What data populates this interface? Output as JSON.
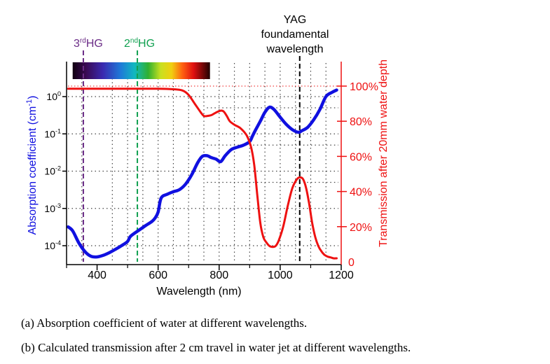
{
  "chart_data": {
    "type": "line",
    "xlabel": "Wavelength (nm)",
    "ylabel_left": "Absorption coefficient (cm",
    "ylabel_left_sup": "-1",
    "ylabel_left_end": ")",
    "ylabel_right": "Transmission after 20mm water depth",
    "xlim": [
      300,
      1200
    ],
    "x_ticks": [
      400,
      600,
      800,
      1000,
      1200
    ],
    "y_left_log_range": [
      0.0001,
      1
    ],
    "y_left_ticks": [
      {
        "base": "10",
        "exp": "0",
        "value": 1
      },
      {
        "base": "10",
        "exp": "-1",
        "value": 0.1
      },
      {
        "base": "10",
        "exp": "-2",
        "value": 0.01
      },
      {
        "base": "10",
        "exp": "-3",
        "value": 0.001
      },
      {
        "base": "10",
        "exp": "-4",
        "value": 0.0001
      }
    ],
    "y_right_ticks": [
      {
        "label": "0",
        "value": 0
      },
      {
        "label": "20%",
        "value": 20
      },
      {
        "label": "40%",
        "value": 40
      },
      {
        "label": "60%",
        "value": 60
      },
      {
        "label": "80%",
        "value": 80
      },
      {
        "label": "100%",
        "value": 100
      }
    ],
    "grid": true,
    "series": [
      {
        "role": "absorption",
        "color": "#1010e0",
        "axis": "left",
        "x": [
          305,
          320,
          340,
          360,
          380,
          400,
          420,
          440,
          460,
          480,
          500,
          510,
          540,
          560,
          580,
          590,
          600,
          610,
          630,
          650,
          670,
          690,
          710,
          730,
          745,
          760,
          775,
          790,
          805,
          820,
          840,
          860,
          880,
          900,
          910,
          920,
          935,
          950,
          965,
          980,
          1000,
          1020,
          1040,
          1060,
          1070,
          1090,
          1110,
          1130,
          1150,
          1170,
          1185
        ],
        "y": [
          0.00032,
          0.00025,
          0.00012,
          7e-05,
          5.2e-05,
          5e-05,
          5.5e-05,
          6.5e-05,
          8e-05,
          0.0001,
          0.00013,
          0.00018,
          0.00027,
          0.00035,
          0.00045,
          0.00055,
          0.0008,
          0.0019,
          0.0024,
          0.0028,
          0.0032,
          0.0045,
          0.008,
          0.017,
          0.025,
          0.026,
          0.023,
          0.021,
          0.018,
          0.026,
          0.038,
          0.044,
          0.05,
          0.062,
          0.09,
          0.13,
          0.22,
          0.38,
          0.52,
          0.45,
          0.28,
          0.18,
          0.13,
          0.11,
          0.12,
          0.15,
          0.24,
          0.45,
          1.0,
          1.3,
          1.5
        ]
      },
      {
        "role": "transmission",
        "color": "#ee1111",
        "axis": "right",
        "x": [
          305,
          400,
          500,
          600,
          650,
          680,
          700,
          720,
          740,
          750,
          760,
          775,
          790,
          805,
          815,
          825,
          835,
          850,
          870,
          890,
          905,
          915,
          925,
          935,
          945,
          955,
          965,
          975,
          985,
          995,
          1010,
          1025,
          1040,
          1055,
          1065,
          1075,
          1085,
          1095,
          1105,
          1115,
          1125,
          1135,
          1145,
          1155,
          1165,
          1175,
          1185
        ],
        "y": [
          98.5,
          98.5,
          98.5,
          98.5,
          98.2,
          97.5,
          95,
          90,
          85,
          83,
          83,
          83.5,
          85,
          86,
          85.5,
          83,
          80,
          78,
          76,
          72,
          65,
          55,
          38,
          22,
          14,
          11,
          9,
          8.5,
          9,
          12,
          20,
          32,
          42,
          47,
          48,
          47,
          42,
          33,
          22,
          14,
          9,
          6,
          4,
          3,
          2.5,
          2,
          2
        ]
      }
    ],
    "annotations": {
      "hg3": {
        "x": 355,
        "label": "3",
        "sup": "rd",
        "suffix": "HG",
        "color": "#6a2b86"
      },
      "hg2": {
        "x": 532,
        "label": "2",
        "sup": "nd",
        "suffix": "HG",
        "color": "#10a050"
      },
      "yag": {
        "x": 1064,
        "lines": [
          "YAG",
          "foundamental",
          "wavelength"
        ],
        "color": "#000000"
      }
    },
    "spectrum_bar": {
      "x_start": 320,
      "x_end": 770
    }
  },
  "caption": {
    "a": "(a) Absorption coefficient of water at different wavelengths.",
    "b": "(b) Calculated transmission after 2 cm travel in water jet at different wavelengths."
  }
}
